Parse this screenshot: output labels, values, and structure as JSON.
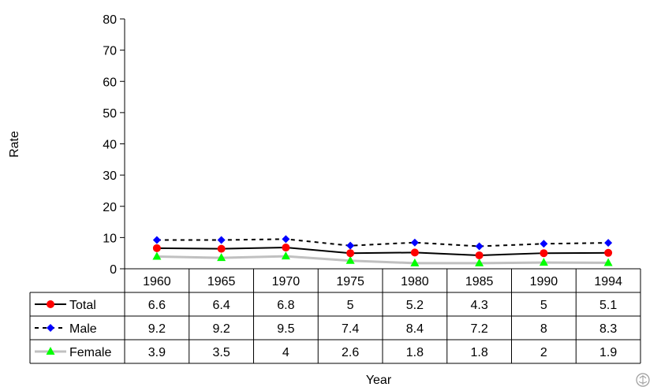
{
  "chart_data": {
    "type": "line",
    "title": "",
    "xlabel": "Year",
    "ylabel": "Rate",
    "ylim": [
      0,
      80
    ],
    "yticks": [
      0,
      10,
      20,
      30,
      40,
      50,
      60,
      70,
      80
    ],
    "categories": [
      "1960",
      "1965",
      "1970",
      "1975",
      "1980",
      "1985",
      "1990",
      "1994"
    ],
    "grid": false,
    "legend": "data-table-left",
    "series": [
      {
        "name": "Total",
        "values": [
          6.6,
          6.4,
          6.8,
          5,
          5.2,
          4.3,
          5,
          5.1
        ],
        "color": "#000000",
        "marker_color": "#ff0000",
        "marker": "circle",
        "line_style": "solid"
      },
      {
        "name": "Male",
        "values": [
          9.2,
          9.2,
          9.5,
          7.4,
          8.4,
          7.2,
          8,
          8.3
        ],
        "color": "#000000",
        "marker_color": "#0000ff",
        "marker": "diamond",
        "line_style": "dashed"
      },
      {
        "name": "Female",
        "values": [
          3.9,
          3.5,
          4,
          2.6,
          1.8,
          1.8,
          2,
          1.9
        ],
        "color": "#c0c0c0",
        "marker_color": "#00ff00",
        "marker": "triangle",
        "line_style": "solid"
      }
    ]
  }
}
